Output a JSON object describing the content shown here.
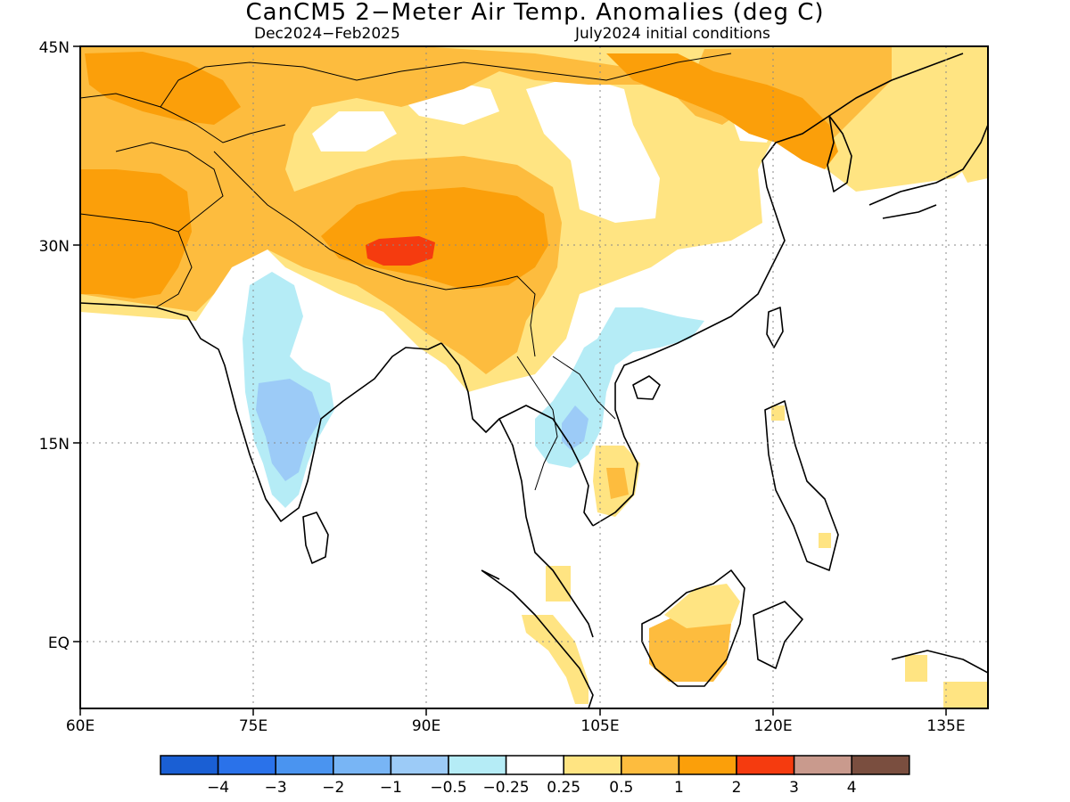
{
  "title": "CanCM5 2−Meter Air Temp. Anomalies (deg C)",
  "subtitle_left": "Dec2024−Feb2025",
  "subtitle_right": "July2024 initial conditions",
  "lat_labels": [
    "45N",
    "30N",
    "15N",
    "EQ"
  ],
  "lon_labels": [
    "60E",
    "75E",
    "90E",
    "105E",
    "120E",
    "135E"
  ],
  "colorbar": {
    "labels": [
      "−4",
      "−3",
      "−2",
      "−1",
      "−0.5",
      "−0.25",
      "0.25",
      "0.5",
      "1",
      "2",
      "3",
      "4"
    ],
    "colors": [
      "#1a5fd4",
      "#2a72ea",
      "#4a94f0",
      "#78b5f5",
      "#9ccbf7",
      "#b5ecf6",
      "#ffffff",
      "#ffe482",
      "#fdbc3e",
      "#fb9f0a",
      "#f53b0f",
      "#c99a8d",
      "#7a4e3f"
    ]
  },
  "anomaly_colors": {
    "warm_light": "#ffe482",
    "warm_mid": "#fdbc3e",
    "warm_strong": "#fb9f0a",
    "hot": "#f53b0f",
    "cool_light": "#b5ecf6",
    "cool_mid": "#9ccbf7"
  }
}
